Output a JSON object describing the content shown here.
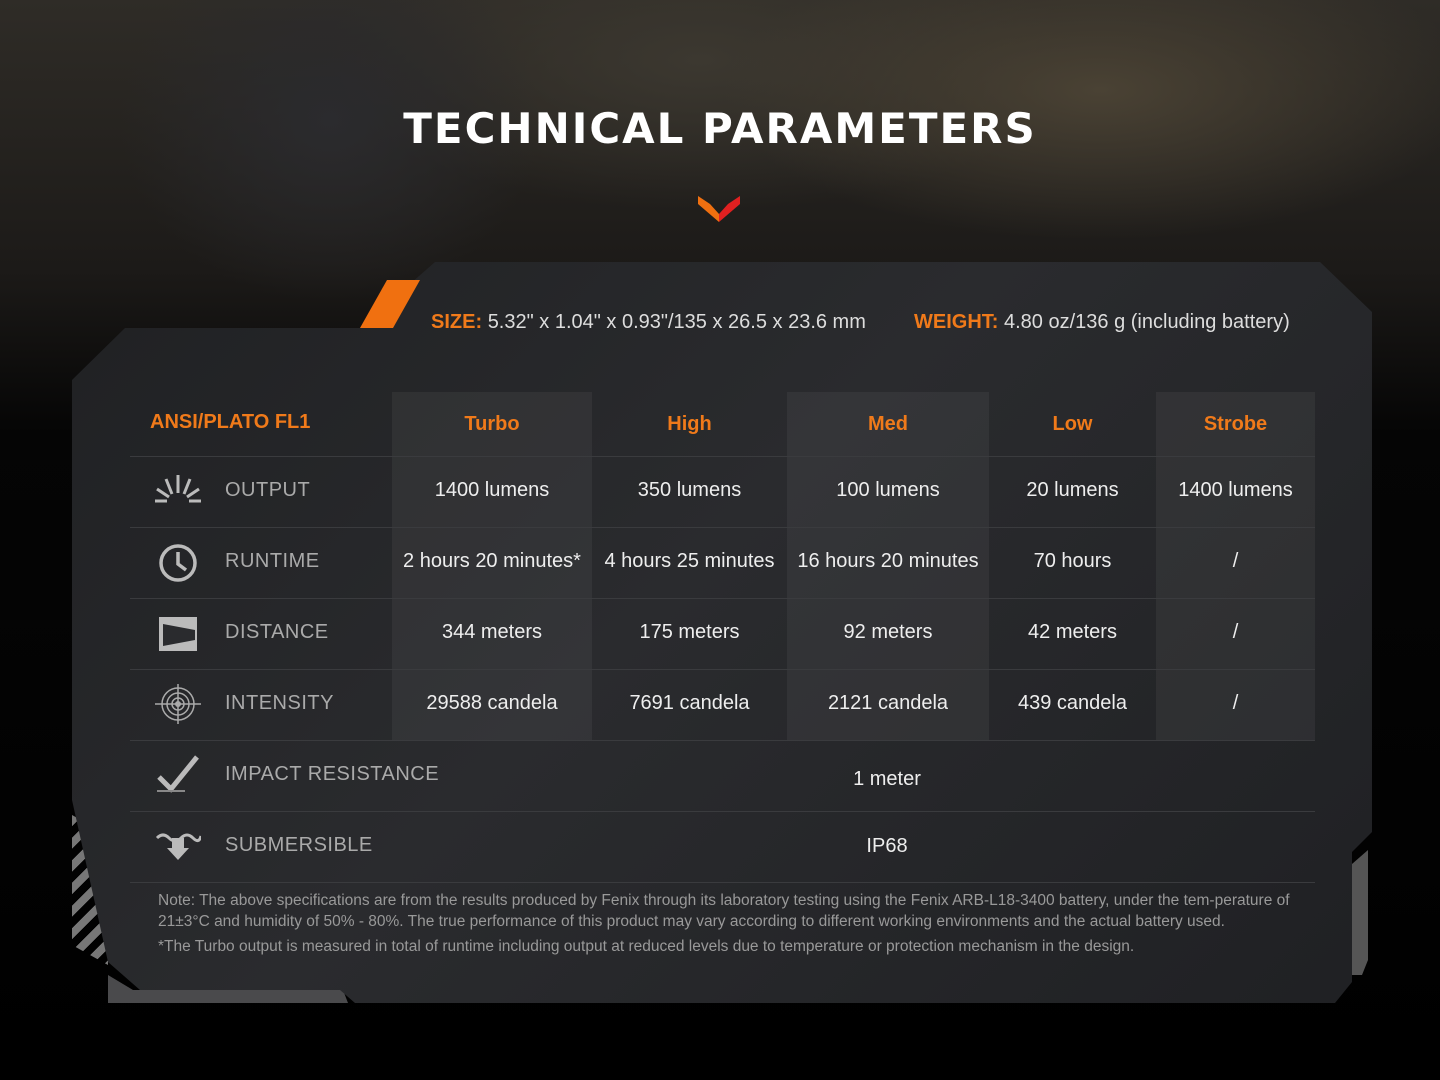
{
  "title": "TECHNICAL PARAMETERS",
  "colors": {
    "accent": "#f07a1a",
    "panel": "#232427"
  },
  "specs": {
    "size_label": "SIZE:",
    "size_value": "5.32\" x 1.04\" x 0.93\"/135 x 26.5 x 23.6 mm",
    "weight_label": "WEIGHT:",
    "weight_value": "4.80 oz/136 g (including battery)"
  },
  "table": {
    "standard": "ANSI/PLATO FL1",
    "modes": [
      "Turbo",
      "High",
      "Med",
      "Low",
      "Strobe"
    ],
    "rows": [
      {
        "icon": "sun-burst-icon",
        "label": "OUTPUT",
        "values": [
          "1400 lumens",
          "350 lumens",
          "100 lumens",
          "20 lumens",
          "1400 lumens"
        ]
      },
      {
        "icon": "clock-icon",
        "label": "RUNTIME",
        "values": [
          "2 hours 20 minutes*",
          "4 hours 25 minutes",
          "16 hours 20 minutes",
          "70 hours",
          "/"
        ]
      },
      {
        "icon": "beam-distance-icon",
        "label": "DISTANCE",
        "values": [
          "344 meters",
          "175 meters",
          "92 meters",
          "42 meters",
          "/"
        ]
      },
      {
        "icon": "target-icon",
        "label": "INTENSITY",
        "values": [
          "29588 candela",
          "7691 candela",
          "2121 candela",
          "439 candela",
          "/"
        ]
      }
    ],
    "impact": {
      "icon": "impact-check-icon",
      "label": "IMPACT RESISTANCE",
      "value": "1 meter"
    },
    "submersible": {
      "icon": "water-icon",
      "label": "SUBMERSIBLE",
      "value": "IP68"
    }
  },
  "note": "Note: The above specifications are from the results produced by Fenix through its laboratory testing using the Fenix ARB-L18-3400 battery, under the tem-perature of 21±3°C and humidity of 50% - 80%. The true performance of this product may vary according to different working environments and the actual battery used.",
  "footnote": "*The Turbo output is measured in total of runtime including output at reduced levels due to temperature or protection mechanism in the design."
}
